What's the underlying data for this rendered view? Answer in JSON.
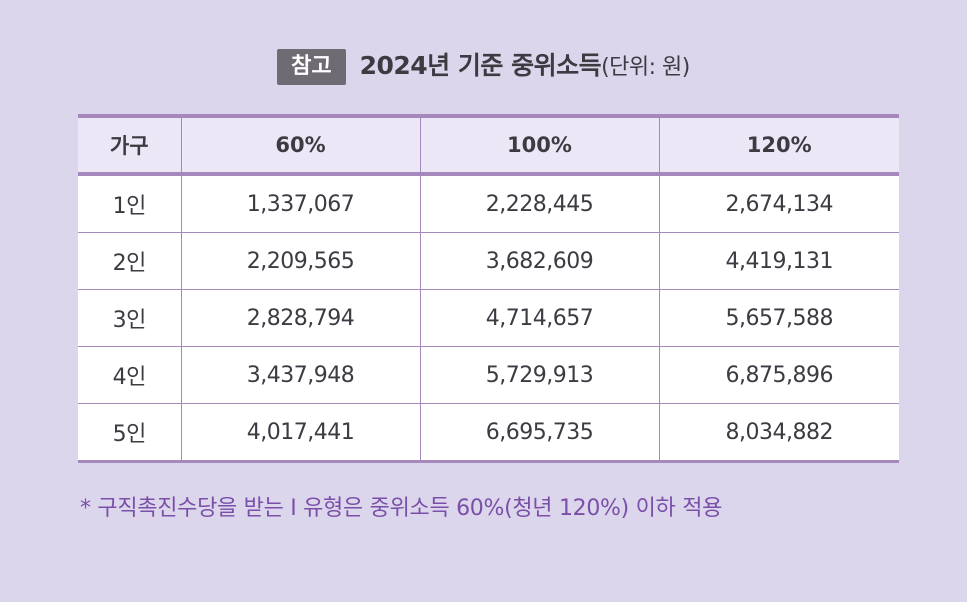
{
  "header": {
    "badge": "참고",
    "title": "2024년 기준 중위소득",
    "unit": "(단위: 원)"
  },
  "table": {
    "columns": [
      "가구",
      "60%",
      "100%",
      "120%"
    ],
    "rows": [
      [
        "1인",
        "1,337,067",
        "2,228,445",
        "2,674,134"
      ],
      [
        "2인",
        "2,209,565",
        "3,682,609",
        "4,419,131"
      ],
      [
        "3인",
        "2,828,794",
        "4,714,657",
        "5,657,588"
      ],
      [
        "4인",
        "3,437,948",
        "5,729,913",
        "6,875,896"
      ],
      [
        "5인",
        "4,017,441",
        "6,695,735",
        "8,034,882"
      ]
    ]
  },
  "footnote": "* 구직촉진수당을 받는 Ⅰ 유형은 중위소득 60%(청년 120%) 이하 적용"
}
